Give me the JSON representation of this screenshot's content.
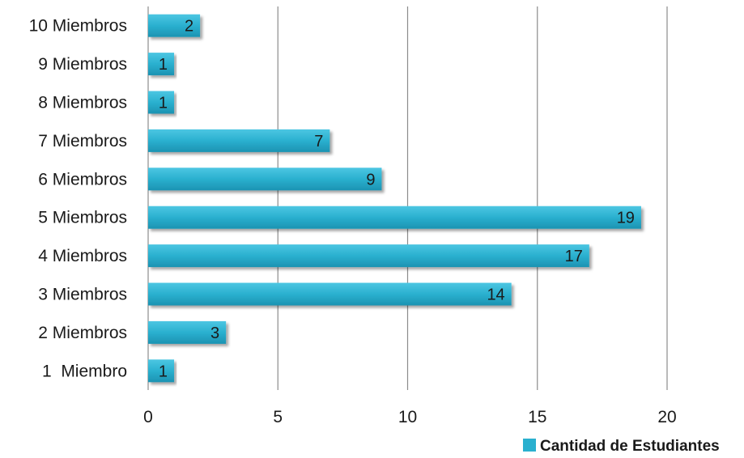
{
  "chart_data": {
    "type": "bar",
    "orientation": "horizontal",
    "title": "",
    "xlabel": "",
    "ylabel": "",
    "categories": [
      "1  Miembro",
      "2 Miembros",
      "3 Miembros",
      "4 Miembros",
      "5 Miembros",
      "6 Miembros",
      "7 Miembros",
      "8 Miembros",
      "9 Miembros",
      "10 Miembros"
    ],
    "series": [
      {
        "name": "Cantidad de Estudiantes",
        "values": [
          1,
          3,
          14,
          17,
          19,
          9,
          7,
          1,
          1,
          2
        ],
        "color": "#2ab0cf"
      }
    ],
    "xlim": [
      0,
      20
    ],
    "x_ticks": [
      "0",
      "5",
      "10",
      "15",
      "20"
    ],
    "grid": "vertical",
    "legend_position": "bottom-right",
    "data_labels": true
  }
}
